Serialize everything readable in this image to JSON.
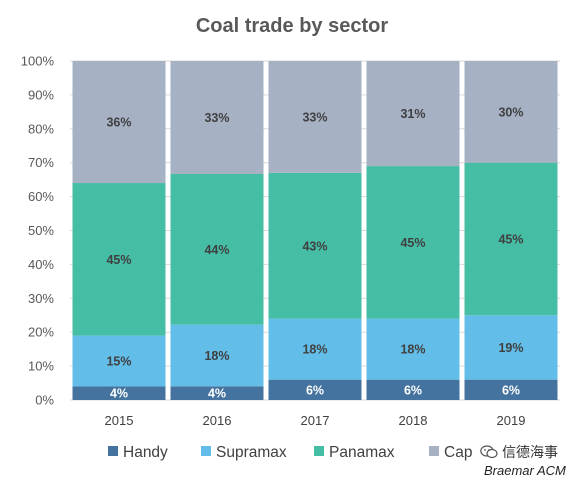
{
  "chart_data": {
    "type": "bar",
    "stacked": "percent",
    "title": "Coal trade by sector",
    "categories": [
      "2015",
      "2016",
      "2017",
      "2018",
      "2019"
    ],
    "series": [
      {
        "name": "Handy",
        "color": "#44739f",
        "values": [
          4,
          4,
          6,
          6,
          6
        ],
        "labels": [
          "4%",
          "4%",
          "6%",
          "6%",
          "6%"
        ]
      },
      {
        "name": "Supramax",
        "color": "#62bde8",
        "values": [
          15,
          18,
          18,
          18,
          19
        ],
        "labels": [
          "15%",
          "18%",
          "18%",
          "18%",
          "19%"
        ]
      },
      {
        "name": "Panamax",
        "color": "#45bea5",
        "values": [
          45,
          44,
          43,
          45,
          45
        ],
        "labels": [
          "45%",
          "44%",
          "43%",
          "45%",
          "45%"
        ]
      },
      {
        "name": "Cap",
        "color": "#a6b1c4",
        "values": [
          36,
          33,
          33,
          31,
          30
        ],
        "labels": [
          "36%",
          "33%",
          "33%",
          "31%",
          "30%"
        ]
      }
    ],
    "y_ticks": [
      "0%",
      "10%",
      "20%",
      "30%",
      "40%",
      "50%",
      "60%",
      "70%",
      "80%",
      "90%",
      "100%"
    ],
    "ylim": [
      0,
      100
    ],
    "grid": true,
    "legend_position": "bottom"
  },
  "watermark": {
    "text": "信德海事",
    "icon": "wechat-icon"
  },
  "source_text": "Braemar ACM"
}
